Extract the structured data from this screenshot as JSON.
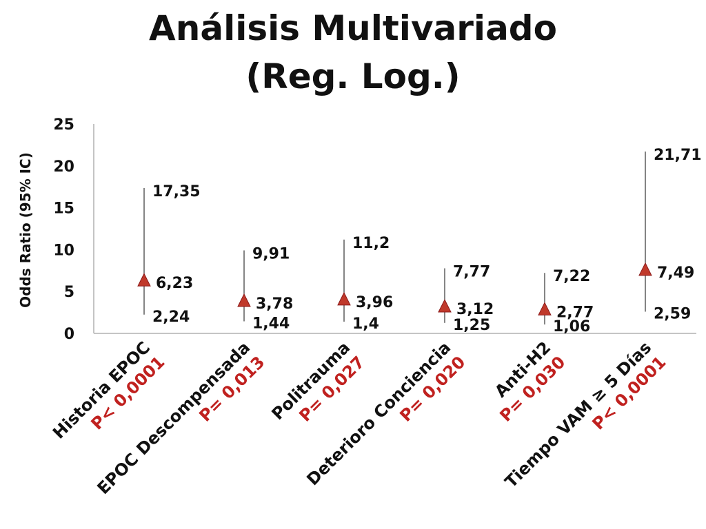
{
  "slide": {
    "title_line1": "Análisis Multivariado",
    "title_line2": "(Reg. Log.)"
  },
  "colors": {
    "marker": "#c0392b",
    "marker_edge": "#8b1a1a",
    "p_value": "#c0211f",
    "axis": "#b0b0b0",
    "whisker": "#333333"
  },
  "chart_data": {
    "type": "scatter",
    "title": "Análisis Multivariado (Reg. Log.)",
    "xlabel": "",
    "ylabel": "Odds Ratio (95% IC)",
    "ylim": [
      0,
      25
    ],
    "yticks": [
      "0",
      "5",
      "10",
      "15",
      "20",
      "25"
    ],
    "grid": false,
    "legend": "none",
    "categories": [
      {
        "name": "Historia EPOC",
        "p": "P< 0,0001",
        "or": 6.23,
        "low": 2.24,
        "high": 17.35,
        "or_label": "6,23",
        "low_label": "2,24",
        "high_label": "17,35"
      },
      {
        "name": "EPOC Descompensada",
        "p": "P= 0,013",
        "or": 3.78,
        "low": 1.44,
        "high": 9.91,
        "or_label": "3,78",
        "low_label": "1,44",
        "high_label": "9,91"
      },
      {
        "name": "Politrauma",
        "p": "P= 0,027",
        "or": 3.96,
        "low": 1.4,
        "high": 11.2,
        "or_label": "3,96",
        "low_label": "1,4",
        "high_label": "11,2"
      },
      {
        "name": "Deterioro Conciencia",
        "p": "P= 0,020",
        "or": 3.12,
        "low": 1.25,
        "high": 7.77,
        "or_label": "3,12",
        "low_label": "1,25",
        "high_label": "7,77"
      },
      {
        "name": "Anti-H2",
        "p": "P= 0,030",
        "or": 2.77,
        "low": 1.06,
        "high": 7.22,
        "or_label": "2,77",
        "low_label": "1,06",
        "high_label": "7,22"
      },
      {
        "name": "Tiempo VAM ≥ 5 Días",
        "p": "P< 0,0001",
        "or": 7.49,
        "low": 2.59,
        "high": 21.71,
        "or_label": "7,49",
        "low_label": "2,59",
        "high_label": "21,71"
      }
    ]
  }
}
